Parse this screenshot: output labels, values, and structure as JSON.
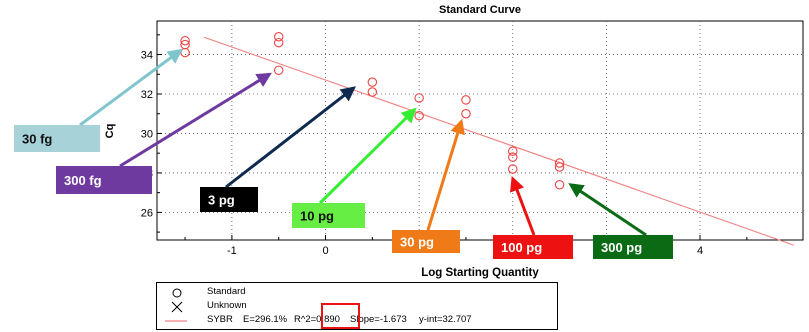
{
  "chart_data": {
    "type": "scatter",
    "title": "Standard Curve",
    "xlabel": "Log Starting Quantity",
    "ylabel": "Cq",
    "xlim": [
      -1.8,
      5.1
    ],
    "ylim": [
      24.6,
      35.7
    ],
    "x_ticks": [
      -1,
      0,
      1,
      2,
      3,
      4
    ],
    "x_tick_labels": [
      "-1",
      "0",
      "",
      "",
      "",
      "4"
    ],
    "y_ticks": [
      26,
      28,
      30,
      32,
      34
    ],
    "y_tick_labels": [
      "26",
      "28",
      "30",
      "32",
      "34"
    ],
    "grid": true,
    "series": [
      {
        "name": "Standard",
        "x": [
          -1.5,
          -1.5,
          -1.5,
          -0.5,
          -0.5,
          -0.5,
          0.5,
          0.5,
          1.0,
          1.0,
          1.5,
          1.5,
          2.0,
          2.0,
          2.0,
          2.5,
          2.5,
          2.5
        ],
        "y": [
          34.7,
          34.5,
          34.1,
          34.9,
          34.6,
          33.2,
          32.6,
          32.1,
          31.8,
          30.9,
          31.7,
          31.0,
          29.1,
          28.8,
          28.2,
          28.5,
          28.3,
          27.4
        ]
      }
    ],
    "fit_line": {
      "slope": -1.673,
      "intercept": 32.707,
      "x_range": [
        -1.3,
        5.0
      ],
      "color": "#f08080"
    },
    "point_color": "#ef4444",
    "annotations": [
      {
        "label": "30 fg",
        "bg": "#a7d3d8",
        "fg": "#111111",
        "arrow_color": "#7fc6cc",
        "target": [
          -1.55,
          34.2
        ]
      },
      {
        "label": "300 fg",
        "bg": "#6e3aa0",
        "fg": "#ffffff",
        "arrow_color": "#6e3aa0",
        "target": [
          -0.6,
          33.0
        ]
      },
      {
        "label": "3 pg",
        "bg": "#000000",
        "fg": "#ffffff",
        "arrow_color": "#0f2a4f",
        "target": [
          0.3,
          32.3
        ]
      },
      {
        "label": "10 pg",
        "bg": "#66ee44",
        "fg": "#111111",
        "arrow_color": "#33ee33",
        "target": [
          0.95,
          31.2
        ]
      },
      {
        "label": "30 pg",
        "bg": "#f07a18",
        "fg": "#ffffff",
        "arrow_color": "#f07a18",
        "target": [
          1.45,
          30.6
        ]
      },
      {
        "label": "100 pg",
        "bg": "#ee1111",
        "fg": "#ffffff",
        "arrow_color": "#ee1111",
        "target": [
          2.0,
          27.7
        ]
      },
      {
        "label": "300 pg",
        "bg": "#0a6b14",
        "fg": "#ffffff",
        "arrow_color": "#0a6b14",
        "target": [
          2.62,
          27.4
        ]
      }
    ]
  },
  "legend": {
    "standard_label": "Standard",
    "unknown_label": "Unknown",
    "fit_label": "SYBR",
    "fit_efficiency": "E=296.1%",
    "fit_r2": "R^2=0.890",
    "fit_slope": "Slope=-1.673",
    "fit_yint": "y-int=32.707",
    "highlight_color": "#ee1111"
  }
}
